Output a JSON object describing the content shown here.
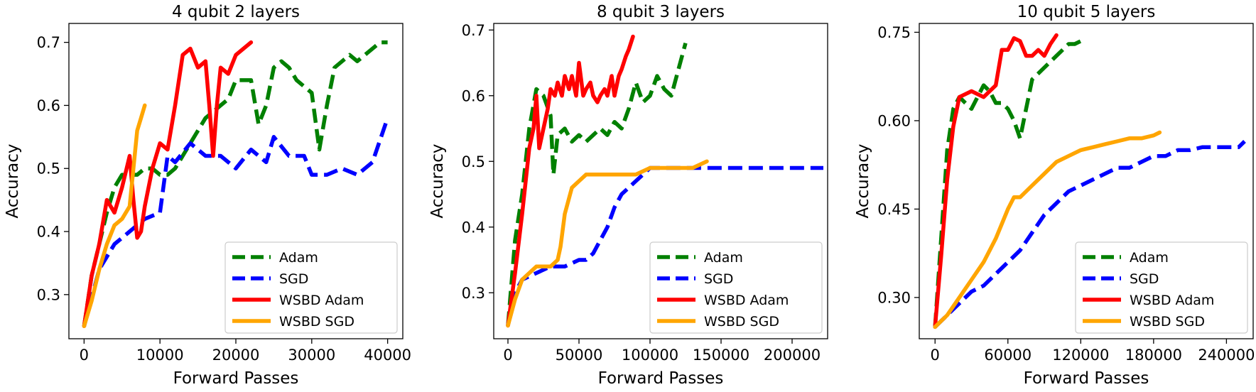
{
  "chart_data": [
    {
      "type": "line",
      "title": "4 qubit 2 layers",
      "xlabel": "Forward Passes",
      "ylabel": "Accuracy",
      "xlim": [
        -2000,
        42000
      ],
      "ylim": [
        0.23,
        0.73
      ],
      "xticks": [
        0,
        10000,
        20000,
        30000,
        40000
      ],
      "yticks": [
        0.3,
        0.4,
        0.5,
        0.6,
        0.7
      ],
      "xtick_labels": [
        "0",
        "10000",
        "20000",
        "30000",
        "40000"
      ],
      "ytick_labels": [
        "0.3",
        "0.4",
        "0.5",
        "0.6",
        "0.7"
      ],
      "grid": false,
      "legend": "lower-right",
      "series": [
        {
          "name": "Adam",
          "color": "#008000",
          "style": "dashed",
          "x": [
            0,
            1000,
            2000,
            3000,
            4000,
            5000,
            6000,
            7000,
            8000,
            9000,
            10000,
            11000,
            12000,
            13000,
            14000,
            15000,
            16000,
            17000,
            18000,
            19000,
            20000,
            21000,
            22000,
            23000,
            24000,
            25000,
            26000,
            27000,
            28000,
            29000,
            30000,
            31000,
            32000,
            33000,
            34000,
            35000,
            36000,
            37000,
            38000,
            39000,
            40000
          ],
          "y": [
            0.25,
            0.33,
            0.38,
            0.43,
            0.47,
            0.49,
            0.49,
            0.49,
            0.5,
            0.5,
            0.49,
            0.49,
            0.5,
            0.52,
            0.54,
            0.56,
            0.58,
            0.59,
            0.6,
            0.61,
            0.64,
            0.64,
            0.64,
            0.57,
            0.6,
            0.66,
            0.67,
            0.66,
            0.64,
            0.63,
            0.62,
            0.53,
            0.6,
            0.66,
            0.67,
            0.68,
            0.67,
            0.68,
            0.69,
            0.7,
            0.7
          ]
        },
        {
          "name": "SGD",
          "color": "#0000ff",
          "style": "dashed",
          "x": [
            0,
            2000,
            4000,
            6000,
            8000,
            10000,
            11000,
            12000,
            14000,
            16000,
            18000,
            20000,
            22000,
            24000,
            25000,
            27000,
            29000,
            30000,
            32000,
            34000,
            36000,
            38000,
            40000
          ],
          "y": [
            0.25,
            0.34,
            0.38,
            0.4,
            0.42,
            0.43,
            0.52,
            0.51,
            0.54,
            0.52,
            0.52,
            0.5,
            0.53,
            0.51,
            0.55,
            0.52,
            0.52,
            0.49,
            0.49,
            0.5,
            0.49,
            0.51,
            0.58
          ]
        },
        {
          "name": "WSBD Adam",
          "color": "#ff0000",
          "style": "solid",
          "x": [
            0,
            1000,
            2000,
            3000,
            4000,
            5000,
            6000,
            6500,
            7000,
            7500,
            8000,
            9000,
            10000,
            11000,
            12000,
            13000,
            14000,
            15000,
            16000,
            16500,
            17000,
            17500,
            18000,
            19000,
            20000,
            21000,
            22000
          ],
          "y": [
            0.25,
            0.33,
            0.38,
            0.45,
            0.43,
            0.47,
            0.52,
            0.45,
            0.39,
            0.4,
            0.44,
            0.5,
            0.54,
            0.53,
            0.6,
            0.68,
            0.69,
            0.66,
            0.67,
            0.6,
            0.52,
            0.6,
            0.66,
            0.65,
            0.68,
            0.69,
            0.7
          ]
        },
        {
          "name": "WSBD SGD",
          "color": "#ffa500",
          "style": "solid",
          "x": [
            0,
            1000,
            2000,
            3000,
            4000,
            5000,
            6000,
            6500,
            7000,
            7500,
            8000
          ],
          "y": [
            0.25,
            0.29,
            0.34,
            0.38,
            0.41,
            0.42,
            0.44,
            0.5,
            0.56,
            0.58,
            0.6
          ]
        }
      ]
    },
    {
      "type": "line",
      "title": "8 qubit 3 layers",
      "xlabel": "Forward Passes",
      "ylabel": "Accuracy",
      "xlim": [
        -10000,
        225000
      ],
      "ylim": [
        0.23,
        0.71
      ],
      "xticks": [
        0,
        50000,
        100000,
        150000,
        200000
      ],
      "yticks": [
        0.3,
        0.4,
        0.5,
        0.6,
        0.7
      ],
      "xtick_labels": [
        "0",
        "50000",
        "100000",
        "150000",
        "200000"
      ],
      "ytick_labels": [
        "0.3",
        "0.4",
        "0.5",
        "0.6",
        "0.7"
      ],
      "grid": false,
      "legend": "lower-right",
      "series": [
        {
          "name": "Adam",
          "color": "#008000",
          "style": "dashed",
          "x": [
            0,
            5000,
            10000,
            15000,
            20000,
            25000,
            30000,
            32000,
            35000,
            40000,
            45000,
            50000,
            55000,
            60000,
            65000,
            70000,
            75000,
            80000,
            85000,
            90000,
            95000,
            100000,
            105000,
            110000,
            115000,
            120000,
            125000
          ],
          "y": [
            0.25,
            0.38,
            0.45,
            0.55,
            0.61,
            0.6,
            0.57,
            0.48,
            0.54,
            0.55,
            0.53,
            0.54,
            0.53,
            0.54,
            0.55,
            0.54,
            0.56,
            0.55,
            0.58,
            0.62,
            0.59,
            0.6,
            0.63,
            0.61,
            0.6,
            0.64,
            0.68
          ]
        },
        {
          "name": "SGD",
          "color": "#0000ff",
          "style": "dashed",
          "x": [
            0,
            5000,
            10000,
            20000,
            30000,
            40000,
            50000,
            55000,
            60000,
            65000,
            70000,
            75000,
            80000,
            85000,
            90000,
            95000,
            100000,
            110000,
            120000,
            130000,
            140000,
            150000,
            160000,
            170000,
            180000,
            190000,
            200000,
            210000,
            222000
          ],
          "y": [
            0.25,
            0.3,
            0.32,
            0.33,
            0.34,
            0.34,
            0.35,
            0.35,
            0.36,
            0.38,
            0.4,
            0.43,
            0.45,
            0.46,
            0.47,
            0.48,
            0.49,
            0.49,
            0.49,
            0.49,
            0.49,
            0.49,
            0.49,
            0.49,
            0.49,
            0.49,
            0.49,
            0.49,
            0.49
          ]
        },
        {
          "name": "WSBD Adam",
          "color": "#ff0000",
          "style": "solid",
          "x": [
            0,
            5000,
            10000,
            15000,
            18000,
            20000,
            22000,
            25000,
            28000,
            30000,
            33000,
            35000,
            38000,
            40000,
            43000,
            45000,
            48000,
            50000,
            53000,
            55000,
            58000,
            60000,
            63000,
            65000,
            68000,
            70000,
            73000,
            75000,
            78000,
            80000,
            83000,
            85000,
            88000
          ],
          "y": [
            0.25,
            0.33,
            0.42,
            0.52,
            0.55,
            0.6,
            0.52,
            0.55,
            0.58,
            0.61,
            0.6,
            0.62,
            0.6,
            0.63,
            0.61,
            0.63,
            0.6,
            0.65,
            0.6,
            0.61,
            0.62,
            0.6,
            0.59,
            0.6,
            0.61,
            0.6,
            0.63,
            0.6,
            0.63,
            0.64,
            0.66,
            0.67,
            0.69
          ]
        },
        {
          "name": "WSBD SGD",
          "color": "#ffa500",
          "style": "solid",
          "x": [
            0,
            5000,
            10000,
            15000,
            20000,
            25000,
            30000,
            35000,
            37000,
            40000,
            45000,
            50000,
            55000,
            60000,
            65000,
            70000,
            75000,
            80000,
            90000,
            100000,
            110000,
            120000,
            130000,
            140000
          ],
          "y": [
            0.25,
            0.29,
            0.32,
            0.33,
            0.34,
            0.34,
            0.34,
            0.35,
            0.37,
            0.42,
            0.46,
            0.47,
            0.48,
            0.48,
            0.48,
            0.48,
            0.48,
            0.48,
            0.48,
            0.49,
            0.49,
            0.49,
            0.49,
            0.5
          ]
        }
      ]
    },
    {
      "type": "line",
      "title": "10 qubit 5 layers",
      "xlabel": "Forward Passes",
      "ylabel": "Accuracy",
      "xlim": [
        -13000,
        262000
      ],
      "ylim": [
        0.23,
        0.765
      ],
      "xticks": [
        0,
        60000,
        120000,
        180000,
        240000
      ],
      "yticks": [
        0.3,
        0.45,
        0.6,
        0.75
      ],
      "xtick_labels": [
        "0",
        "60000",
        "120000",
        "180000",
        "240000"
      ],
      "ytick_labels": [
        "0.30",
        "0.45",
        "0.60",
        "0.75"
      ],
      "grid": false,
      "legend": "lower-right",
      "series": [
        {
          "name": "Adam",
          "color": "#008000",
          "style": "dashed",
          "x": [
            0,
            5000,
            10000,
            15000,
            20000,
            25000,
            30000,
            35000,
            40000,
            45000,
            50000,
            55000,
            60000,
            65000,
            70000,
            75000,
            80000,
            85000,
            90000,
            95000,
            100000,
            105000,
            110000,
            115000,
            120000
          ],
          "y": [
            0.25,
            0.4,
            0.55,
            0.62,
            0.64,
            0.63,
            0.62,
            0.64,
            0.66,
            0.65,
            0.63,
            0.63,
            0.62,
            0.6,
            0.57,
            0.62,
            0.67,
            0.68,
            0.69,
            0.7,
            0.71,
            0.72,
            0.73,
            0.73,
            0.735
          ]
        },
        {
          "name": "SGD",
          "color": "#0000ff",
          "style": "dashed",
          "x": [
            0,
            10000,
            20000,
            30000,
            40000,
            50000,
            60000,
            70000,
            80000,
            90000,
            100000,
            110000,
            120000,
            130000,
            140000,
            150000,
            160000,
            170000,
            180000,
            190000,
            200000,
            210000,
            220000,
            230000,
            240000,
            250000,
            255000
          ],
          "y": [
            0.25,
            0.27,
            0.29,
            0.31,
            0.32,
            0.34,
            0.36,
            0.38,
            0.41,
            0.44,
            0.46,
            0.48,
            0.49,
            0.5,
            0.51,
            0.52,
            0.52,
            0.53,
            0.54,
            0.54,
            0.55,
            0.55,
            0.555,
            0.555,
            0.555,
            0.555,
            0.565
          ]
        },
        {
          "name": "WSBD Adam",
          "color": "#ff0000",
          "style": "solid",
          "x": [
            0,
            5000,
            10000,
            15000,
            20000,
            30000,
            40000,
            50000,
            55000,
            60000,
            65000,
            70000,
            75000,
            80000,
            85000,
            90000,
            95000,
            100000
          ],
          "y": [
            0.25,
            0.37,
            0.5,
            0.59,
            0.64,
            0.65,
            0.64,
            0.66,
            0.72,
            0.72,
            0.74,
            0.735,
            0.71,
            0.71,
            0.72,
            0.71,
            0.73,
            0.745
          ]
        },
        {
          "name": "WSBD SGD",
          "color": "#ffa500",
          "style": "solid",
          "x": [
            0,
            10000,
            20000,
            30000,
            40000,
            50000,
            60000,
            65000,
            70000,
            80000,
            90000,
            100000,
            110000,
            120000,
            130000,
            140000,
            150000,
            160000,
            170000,
            180000,
            185000
          ],
          "y": [
            0.25,
            0.27,
            0.3,
            0.33,
            0.36,
            0.4,
            0.45,
            0.47,
            0.47,
            0.49,
            0.51,
            0.53,
            0.54,
            0.55,
            0.555,
            0.56,
            0.565,
            0.57,
            0.57,
            0.575,
            0.58
          ]
        }
      ]
    }
  ]
}
